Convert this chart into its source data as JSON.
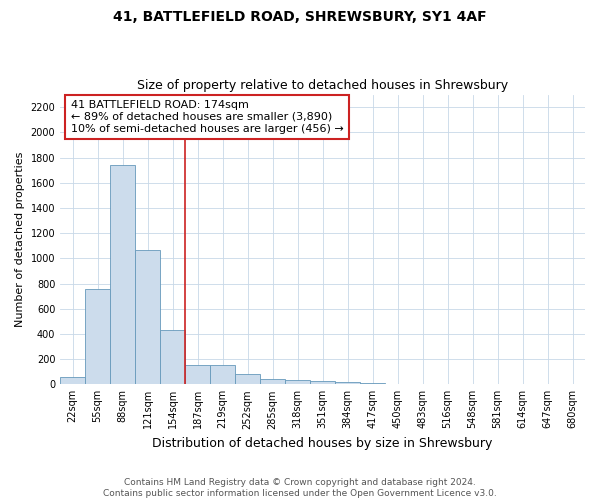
{
  "title1": "41, BATTLEFIELD ROAD, SHREWSBURY, SY1 4AF",
  "title2": "Size of property relative to detached houses in Shrewsbury",
  "xlabel": "Distribution of detached houses by size in Shrewsbury",
  "ylabel": "Number of detached properties",
  "annotation_line1": "41 BATTLEFIELD ROAD: 174sqm",
  "annotation_line2": "← 89% of detached houses are smaller (3,890)",
  "annotation_line3": "10% of semi-detached houses are larger (456) →",
  "footer1": "Contains HM Land Registry data © Crown copyright and database right 2024.",
  "footer2": "Contains public sector information licensed under the Open Government Licence v3.0.",
  "bar_color": "#ccdcec",
  "bar_edge_color": "#6699bb",
  "line_color": "#cc2222",
  "annotation_box_color": "#cc2222",
  "grid_color": "#c8d8e8",
  "categories": [
    "22sqm",
    "55sqm",
    "88sqm",
    "121sqm",
    "154sqm",
    "187sqm",
    "219sqm",
    "252sqm",
    "285sqm",
    "318sqm",
    "351sqm",
    "384sqm",
    "417sqm",
    "450sqm",
    "483sqm",
    "516sqm",
    "548sqm",
    "581sqm",
    "614sqm",
    "647sqm",
    "680sqm"
  ],
  "values": [
    60,
    760,
    1740,
    1070,
    430,
    155,
    155,
    85,
    45,
    35,
    25,
    15,
    10,
    0,
    0,
    0,
    0,
    0,
    0,
    0,
    0
  ],
  "vline_x": 5.0,
  "ylim": [
    0,
    2300
  ],
  "yticks": [
    0,
    200,
    400,
    600,
    800,
    1000,
    1200,
    1400,
    1600,
    1800,
    2000,
    2200
  ],
  "title1_fontsize": 10,
  "title2_fontsize": 9,
  "ylabel_fontsize": 8,
  "xlabel_fontsize": 9,
  "tick_fontsize": 7,
  "footer_fontsize": 6.5,
  "ann_fontsize": 8
}
